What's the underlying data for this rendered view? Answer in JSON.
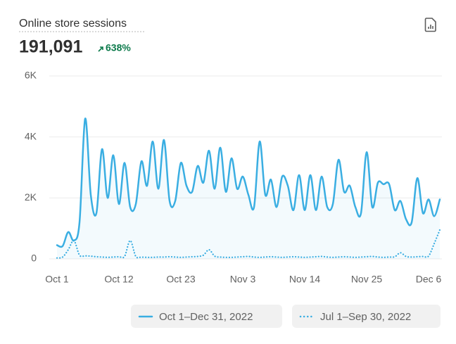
{
  "chart_data": {
    "type": "line",
    "title": "Online store sessions",
    "total": "191,091",
    "change": "638%",
    "categories": [
      "Oct 1",
      null,
      null,
      null,
      null,
      null,
      null,
      null,
      null,
      null,
      null,
      "Oct 12",
      null,
      null,
      null,
      null,
      null,
      null,
      null,
      null,
      null,
      null,
      "Oct 23",
      null,
      null,
      null,
      null,
      null,
      null,
      null,
      null,
      null,
      null,
      "Nov 3",
      null,
      null,
      null,
      null,
      null,
      null,
      null,
      null,
      null,
      null,
      "Nov 14",
      null,
      null,
      null,
      null,
      null,
      null,
      null,
      null,
      null,
      null,
      "Nov 25",
      null,
      null,
      null,
      null,
      null,
      null,
      null,
      null,
      null,
      null,
      "Dec 6",
      null,
      null
    ],
    "series": [
      {
        "name": "Oct 1–Dec 31, 2022",
        "color": "#3aaee2",
        "style": "solid",
        "values": [
          450,
          420,
          880,
          600,
          1200,
          4600,
          2100,
          1500,
          3600,
          2000,
          3400,
          1800,
          3150,
          1700,
          1800,
          3200,
          2400,
          3850,
          2300,
          3900,
          1900,
          1900,
          3150,
          2400,
          2200,
          3050,
          2500,
          3550,
          2300,
          3650,
          2200,
          3300,
          2300,
          2700,
          2100,
          1700,
          3850,
          2100,
          2600,
          1700,
          2700,
          2400,
          1600,
          2750,
          1600,
          2750,
          1600,
          2700,
          1700,
          1800,
          3250,
          2200,
          2400,
          1700,
          1500,
          3500,
          1700,
          2500,
          2450,
          2450,
          1600,
          1900,
          1300,
          1200,
          2650,
          1500,
          1950,
          1400,
          1950
        ]
      },
      {
        "name": "Jul 1–Sep 30, 2022",
        "color": "#3aaee2",
        "style": "dotted",
        "values": [
          30,
          60,
          300,
          600,
          120,
          100,
          90,
          70,
          60,
          50,
          60,
          70,
          80,
          600,
          80,
          60,
          50,
          50,
          60,
          60,
          70,
          60,
          50,
          60,
          70,
          80,
          120,
          300,
          90,
          60,
          50,
          50,
          60,
          70,
          80,
          60,
          50,
          60,
          70,
          60,
          50,
          60,
          70,
          60,
          50,
          60,
          70,
          80,
          60,
          50,
          60,
          70,
          60,
          50,
          60,
          70,
          80,
          60,
          50,
          60,
          70,
          200,
          80,
          60,
          70,
          80,
          90,
          500,
          950
        ]
      }
    ],
    "ylim": [
      0,
      6000
    ],
    "yticks": [
      0,
      {
        "value": 2000,
        "label": "2K"
      },
      {
        "value": 4000,
        "label": "4K"
      },
      {
        "value": 6000,
        "label": "6K"
      }
    ],
    "grid": true
  }
}
